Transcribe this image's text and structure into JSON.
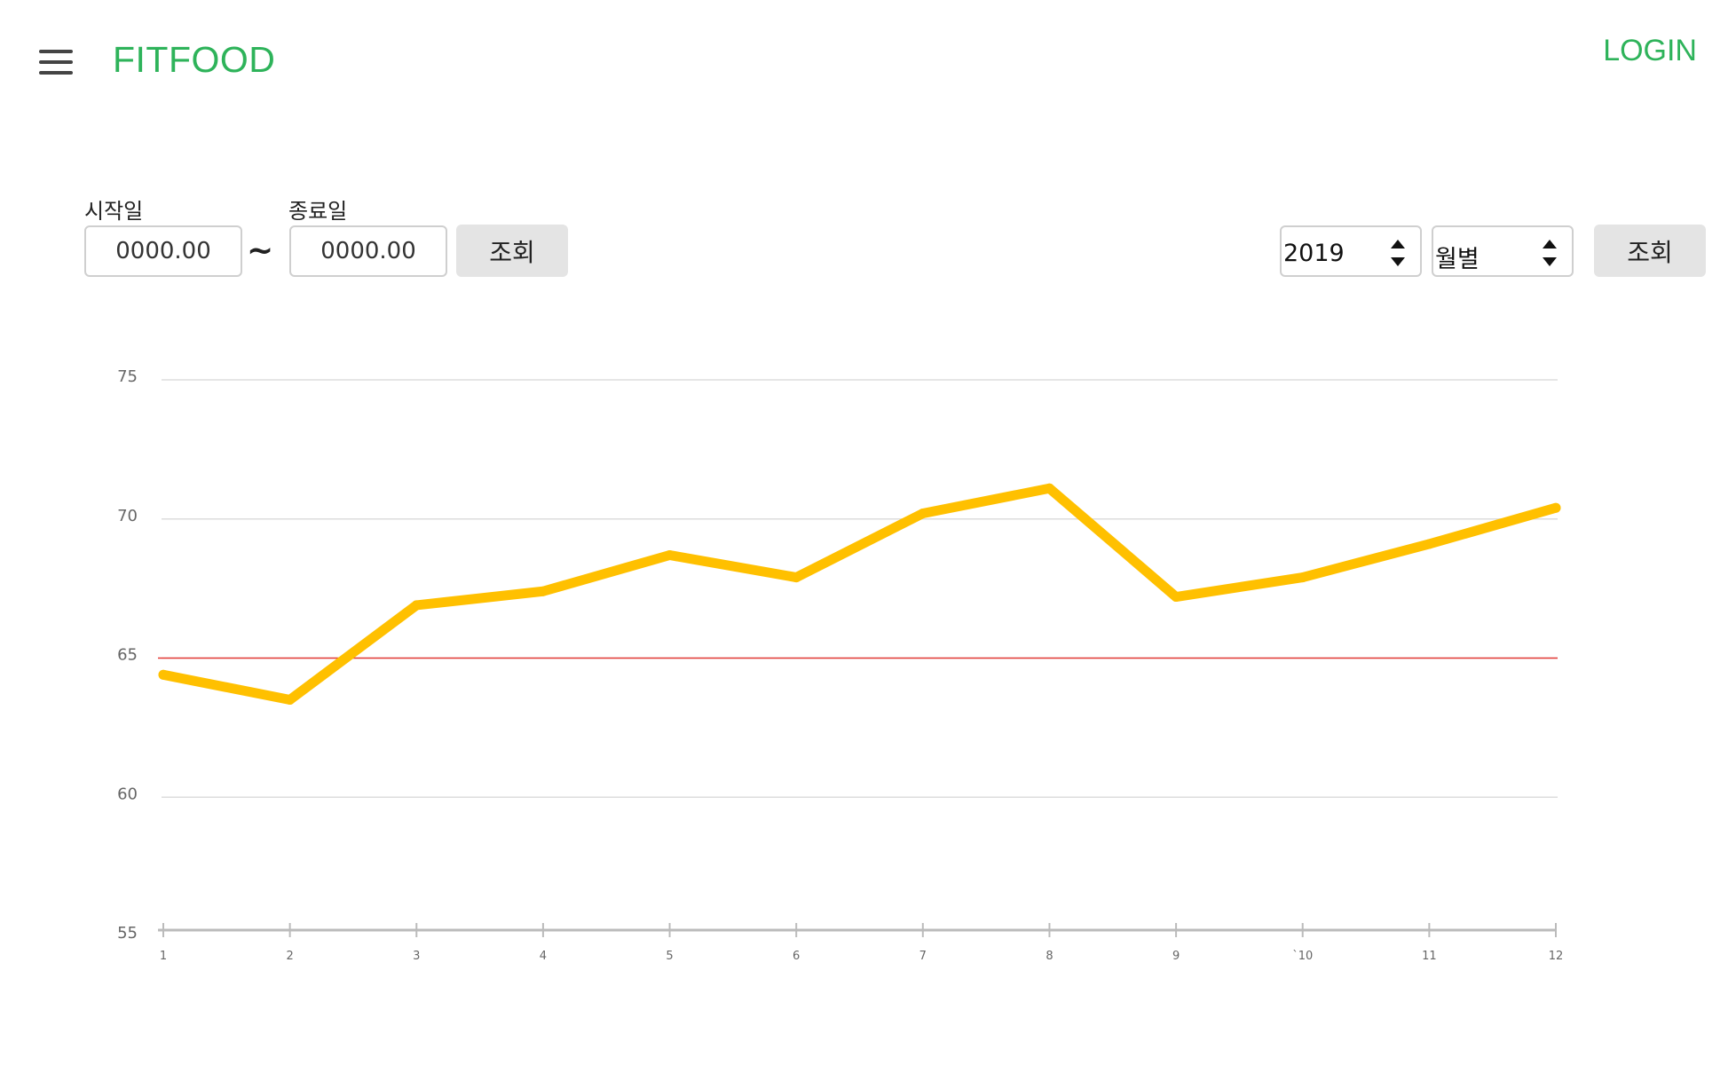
{
  "header": {
    "brand": "FITFOOD",
    "login": "LOGIN"
  },
  "filters": {
    "start_label": "시작일",
    "end_label": "종료일",
    "start_placeholder": "0000.00",
    "end_placeholder": "0000.00",
    "separator": "~",
    "search_label": "조회",
    "year_value": "2019",
    "period_value": "월별",
    "search2_label": "조회"
  },
  "colors": {
    "brand": "#2eb35a",
    "series": "#ffc000",
    "target_line": "#e53935",
    "grid": "#dddddd"
  },
  "icons": {
    "menu": "hamburger-icon",
    "spinner_up": "triangle-up-icon",
    "spinner_down": "triangle-down-icon"
  },
  "chart_data": {
    "type": "line",
    "categories": [
      "1",
      "2",
      "3",
      "4",
      "5",
      "6",
      "7",
      "8",
      "9",
      "`10",
      "11",
      "12"
    ],
    "series": [
      {
        "values": [
          64.4,
          63.5,
          66.9,
          67.4,
          68.7,
          67.9,
          70.2,
          71.1,
          67.2,
          67.9,
          69.1,
          70.4
        ]
      }
    ],
    "reference_line": {
      "value": 65
    },
    "ylim": [
      55,
      75
    ],
    "yticks": [
      55,
      60,
      65,
      70,
      75
    ],
    "grid": true,
    "legend": "none"
  }
}
